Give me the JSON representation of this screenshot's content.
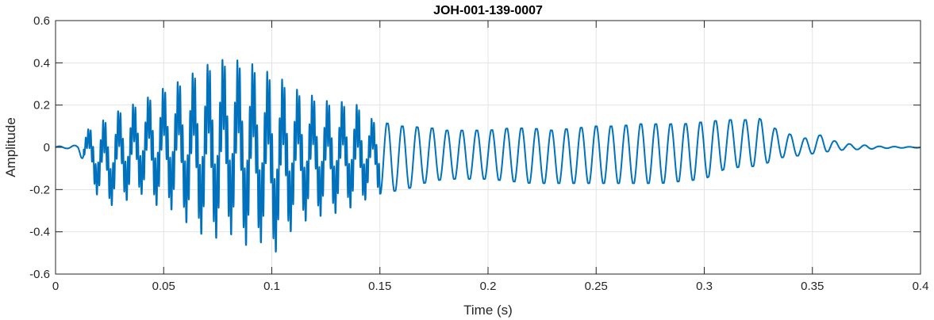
{
  "chart_data": {
    "type": "line",
    "title": "JOH-001-139-0007",
    "xlabel": "Time (s)",
    "ylabel": "Amplitude",
    "xlim": [
      0,
      0.4
    ],
    "ylim": [
      -0.6,
      0.6
    ],
    "grid": true,
    "xticks": [
      {
        "value": 0,
        "label": "0"
      },
      {
        "value": 0.05,
        "label": "0.05"
      },
      {
        "value": 0.1,
        "label": "0.1"
      },
      {
        "value": 0.15,
        "label": "0.15"
      },
      {
        "value": 0.2,
        "label": "0.2"
      },
      {
        "value": 0.25,
        "label": "0.25"
      },
      {
        "value": 0.3,
        "label": "0.3"
      },
      {
        "value": 0.35,
        "label": "0.35"
      },
      {
        "value": 0.4,
        "label": "0.4"
      }
    ],
    "yticks": [
      {
        "value": 0.6,
        "label": "0.6"
      },
      {
        "value": 0.4,
        "label": "0.4"
      },
      {
        "value": 0.2,
        "label": "0.2"
      },
      {
        "value": 0,
        "label": "0"
      },
      {
        "value": -0.2,
        "label": "-0.2"
      },
      {
        "value": -0.4,
        "label": "-0.4"
      },
      {
        "value": -0.6,
        "label": "-0.6"
      }
    ],
    "series": [
      {
        "color": "#0072BD",
        "x": [
          0,
          0.005,
          0.01,
          0.012,
          0.014,
          0.016,
          0.018,
          0.02,
          0.025,
          0.03,
          0.035,
          0.04,
          0.045,
          0.05,
          0.055,
          0.06,
          0.065,
          0.07,
          0.075,
          0.08,
          0.085,
          0.09,
          0.095,
          0.1,
          0.105,
          0.11,
          0.115,
          0.12,
          0.125,
          0.13,
          0.135,
          0.14,
          0.145,
          0.15,
          0.155,
          0.16,
          0.165,
          0.17,
          0.175,
          0.18,
          0.19,
          0.2,
          0.21,
          0.22,
          0.23,
          0.24,
          0.25,
          0.26,
          0.27,
          0.28,
          0.29,
          0.3,
          0.31,
          0.32,
          0.325,
          0.33,
          0.335,
          0.34,
          0.345,
          0.35,
          0.355,
          0.36,
          0.365,
          0.37,
          0.375,
          0.38,
          0.39,
          0.4
        ],
        "envelope_max": [
          0.005,
          0.005,
          0.01,
          0.05,
          0.08,
          0.09,
          0.1,
          0.12,
          0.14,
          0.18,
          0.2,
          0.22,
          0.25,
          0.28,
          0.3,
          0.33,
          0.36,
          0.39,
          0.41,
          0.42,
          0.41,
          0.4,
          0.37,
          0.35,
          0.32,
          0.28,
          0.26,
          0.24,
          0.22,
          0.22,
          0.21,
          0.2,
          0.14,
          0.12,
          0.11,
          0.1,
          0.1,
          0.09,
          0.09,
          0.08,
          0.08,
          0.08,
          0.09,
          0.09,
          0.08,
          0.09,
          0.1,
          0.1,
          0.11,
          0.11,
          0.11,
          0.12,
          0.13,
          0.13,
          0.14,
          0.1,
          0.08,
          0.06,
          0.04,
          0.05,
          0.06,
          0.03,
          0.02,
          0.01,
          0.01,
          0.005,
          0.003,
          0.002
        ],
        "envelope_min": [
          -0.005,
          -0.005,
          -0.01,
          -0.05,
          -0.06,
          -0.16,
          -0.2,
          -0.24,
          -0.28,
          -0.25,
          -0.25,
          -0.22,
          -0.27,
          -0.28,
          -0.3,
          -0.35,
          -0.4,
          -0.42,
          -0.43,
          -0.4,
          -0.45,
          -0.47,
          -0.45,
          -0.52,
          -0.45,
          -0.38,
          -0.35,
          -0.33,
          -0.32,
          -0.31,
          -0.28,
          -0.3,
          -0.22,
          -0.22,
          -0.21,
          -0.2,
          -0.19,
          -0.17,
          -0.16,
          -0.15,
          -0.15,
          -0.15,
          -0.16,
          -0.17,
          -0.17,
          -0.17,
          -0.17,
          -0.17,
          -0.17,
          -0.17,
          -0.16,
          -0.15,
          -0.1,
          -0.09,
          -0.09,
          -0.07,
          -0.05,
          -0.04,
          -0.04,
          -0.03,
          -0.02,
          -0.02,
          -0.01,
          -0.01,
          -0.01,
          -0.005,
          -0.003,
          -0.002
        ]
      }
    ]
  }
}
